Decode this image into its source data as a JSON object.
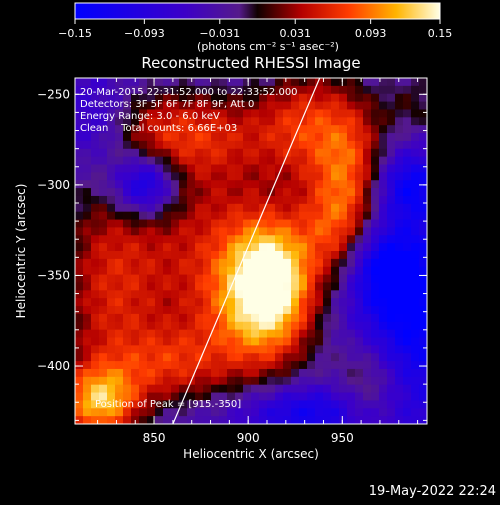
{
  "chart_data": {
    "type": "heatmap",
    "title": "Reconstructed RHESSI Image",
    "xlabel": "Heliocentric X (arcsec)",
    "ylabel": "Heliocentric Y (arcsec)",
    "xlim": [
      808,
      995
    ],
    "ylim": [
      -432,
      -241
    ],
    "x_ticks": [
      850,
      900,
      950
    ],
    "x_tick_labels": [
      "850",
      "900",
      "950"
    ],
    "y_ticks": [
      -250,
      -300,
      -350,
      -400
    ],
    "y_tick_labels": [
      "−250",
      "−300",
      "−350",
      "−400"
    ],
    "colorbar": {
      "range": [
        -0.15,
        0.15
      ],
      "ticks": [
        -0.15,
        -0.093,
        -0.031,
        0.031,
        0.093,
        0.15
      ],
      "tick_labels": [
        "−0.15",
        "−0.093",
        "−0.031",
        "0.031",
        "0.093",
        "0.15"
      ],
      "unit_label": "(photons cm⁻² s⁻¹ asec⁻²)"
    },
    "annotations": {
      "time": "20-Mar-2015 22:31:52.000 to 22:33:52.000",
      "detectors": "Detectors: 3F 5F 6F 7F 8F 9F, Att 0",
      "energy": "Energy Range: 3.0 - 6.0 keV",
      "clean": "Clean    Total counts: 6.66E+03",
      "peak": "Position of Peak = [915.-350]"
    },
    "peak": {
      "x": 915,
      "y": -350
    },
    "limb_line": [
      [
        860,
        -432
      ],
      [
        938,
        -241
      ]
    ],
    "sources": [
      {
        "x": 912,
        "y": -352,
        "sx": 16,
        "sy": 24,
        "amp": 0.16
      },
      {
        "x": 880,
        "y": -330,
        "sx": 30,
        "sy": 45,
        "amp": 0.09
      },
      {
        "x": 905,
        "y": -380,
        "sx": 25,
        "sy": 30,
        "amp": 0.08
      },
      {
        "x": 825,
        "y": -360,
        "sx": 22,
        "sy": 55,
        "amp": 0.1
      },
      {
        "x": 860,
        "y": -270,
        "sx": 40,
        "sy": 18,
        "amp": 0.09
      },
      {
        "x": 930,
        "y": -265,
        "sx": 18,
        "sy": 25,
        "amp": 0.09
      },
      {
        "x": 955,
        "y": -290,
        "sx": 14,
        "sy": 30,
        "amp": 0.11
      },
      {
        "x": 945,
        "y": -325,
        "sx": 14,
        "sy": 20,
        "amp": 0.08
      },
      {
        "x": 820,
        "y": -420,
        "sx": 15,
        "sy": 14,
        "amp": 0.13
      },
      {
        "x": 860,
        "y": -400,
        "sx": 20,
        "sy": 15,
        "amp": 0.07
      },
      {
        "x": 965,
        "y": -410,
        "sx": 14,
        "sy": 20,
        "amp": 0.08
      },
      {
        "x": 990,
        "y": -255,
        "sx": 15,
        "sy": 15,
        "amp": 0.06
      },
      {
        "x": 845,
        "y": -300,
        "sx": 12,
        "sy": 12,
        "amp": -0.13
      },
      {
        "x": 820,
        "y": -270,
        "sx": 15,
        "sy": 18,
        "amp": -0.08
      },
      {
        "x": 985,
        "y": -370,
        "sx": 20,
        "sy": 40,
        "amp": -0.1
      },
      {
        "x": 930,
        "y": -425,
        "sx": 25,
        "sy": 10,
        "amp": -0.08
      },
      {
        "x": 970,
        "y": -345,
        "sx": 12,
        "sy": 15,
        "amp": -0.06
      },
      {
        "x": 985,
        "y": -300,
        "sx": 12,
        "sy": 12,
        "amp": -0.07
      }
    ]
  },
  "footer": {
    "date": "19-May-2022 22:24"
  }
}
